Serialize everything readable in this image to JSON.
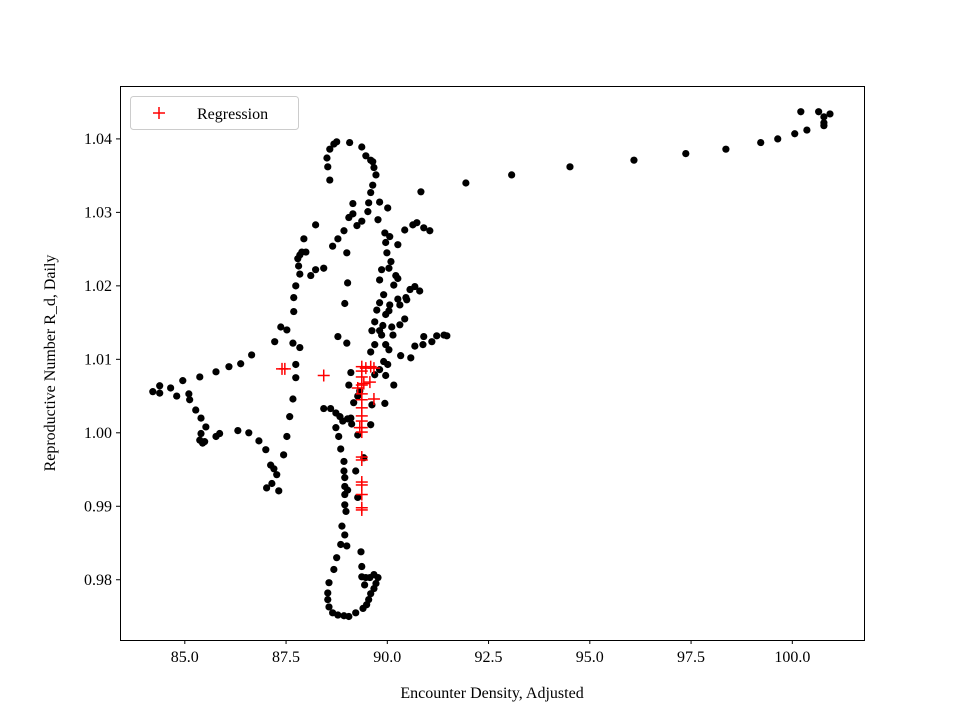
{
  "chart_data": {
    "type": "scatter",
    "title": "",
    "xlabel": "Encounter Density, Adjusted",
    "ylabel": "Reproductive Number R_d, Daily",
    "xlim": [
      83.4,
      101.77
    ],
    "ylim": [
      0.9718,
      1.0472
    ],
    "xticks": [
      85.0,
      87.5,
      90.0,
      92.5,
      95.0,
      97.5,
      100.0
    ],
    "xtick_labels": [
      "85.0",
      "87.5",
      "90.0",
      "92.5",
      "95.0",
      "97.5",
      "100.0"
    ],
    "yticks": [
      0.98,
      0.99,
      1.0,
      1.01,
      1.02,
      1.03,
      1.04
    ],
    "ytick_labels": [
      "0.98",
      "0.99",
      "1.00",
      "1.01",
      "1.02",
      "1.03",
      "1.04"
    ],
    "grid": false,
    "legend": {
      "placement": "top-left",
      "entries": [
        "Regression"
      ]
    },
    "series": [
      {
        "marker": "circle",
        "color": "#000000",
        "points": [
          [
            84.21,
            1.0056
          ],
          [
            84.38,
            1.0064
          ],
          [
            84.38,
            1.0054
          ],
          [
            84.65,
            1.0061
          ],
          [
            84.8,
            1.005
          ],
          [
            84.95,
            1.0071
          ],
          [
            85.1,
            1.0053
          ],
          [
            85.12,
            1.0045
          ],
          [
            85.27,
            1.0031
          ],
          [
            85.4,
            1.002
          ],
          [
            85.52,
            1.0008
          ],
          [
            85.4,
            0.9999
          ],
          [
            85.37,
            0.999
          ],
          [
            85.44,
            0.9986
          ],
          [
            85.49,
            0.9988
          ],
          [
            85.77,
            0.9995
          ],
          [
            85.86,
            0.9999
          ],
          [
            85.37,
            1.0076
          ],
          [
            85.77,
            1.0083
          ],
          [
            86.09,
            1.009
          ],
          [
            86.38,
            1.0094
          ],
          [
            86.65,
            1.0106
          ],
          [
            86.31,
            1.0003
          ],
          [
            86.58,
            1.0
          ],
          [
            86.83,
            0.9989
          ],
          [
            87.0,
            0.9977
          ],
          [
            87.12,
            0.9956
          ],
          [
            87.2,
            0.9951
          ],
          [
            87.27,
            0.9943
          ],
          [
            87.32,
            0.9921
          ],
          [
            87.15,
            0.9931
          ],
          [
            87.02,
            0.9925
          ],
          [
            87.44,
            0.997
          ],
          [
            87.52,
            0.9995
          ],
          [
            87.59,
            1.0022
          ],
          [
            87.67,
            1.0046
          ],
          [
            87.74,
            1.0075
          ],
          [
            87.74,
            1.0093
          ],
          [
            87.84,
            1.0116
          ],
          [
            87.67,
            1.0122
          ],
          [
            87.52,
            1.014
          ],
          [
            87.37,
            1.0144
          ],
          [
            87.22,
            1.0124
          ],
          [
            87.69,
            1.0165
          ],
          [
            87.69,
            1.0184
          ],
          [
            87.74,
            1.02
          ],
          [
            87.84,
            1.0216
          ],
          [
            87.81,
            1.0227
          ],
          [
            87.84,
            1.0242
          ],
          [
            87.94,
            1.0264
          ],
          [
            87.79,
            1.0237
          ],
          [
            87.89,
            1.0246
          ],
          [
            87.99,
            1.0246
          ],
          [
            88.11,
            1.0214
          ],
          [
            88.23,
            1.0222
          ],
          [
            88.43,
            1.0224
          ],
          [
            88.23,
            1.0283
          ],
          [
            88.65,
            1.0254
          ],
          [
            88.78,
            1.0264
          ],
          [
            88.93,
            1.0275
          ],
          [
            89.05,
            1.0293
          ],
          [
            89.15,
            1.0312
          ],
          [
            89.15,
            1.0298
          ],
          [
            89.0,
            1.0245
          ],
          [
            89.02,
            1.0204
          ],
          [
            88.95,
            1.0176
          ],
          [
            88.78,
            1.0131
          ],
          [
            89.0,
            1.0122
          ],
          [
            89.1,
            1.0082
          ],
          [
            89.32,
            1.0057
          ],
          [
            88.58,
            1.0344
          ],
          [
            88.53,
            1.0362
          ],
          [
            88.51,
            1.0374
          ],
          [
            88.58,
            1.0386
          ],
          [
            88.68,
            1.0393
          ],
          [
            88.75,
            1.0396
          ],
          [
            89.07,
            1.0395
          ],
          [
            89.37,
            1.0389
          ],
          [
            89.47,
            1.0377
          ],
          [
            89.59,
            1.0371
          ],
          [
            89.64,
            1.0369
          ],
          [
            89.67,
            1.0361
          ],
          [
            89.72,
            1.0351
          ],
          [
            89.64,
            1.0337
          ],
          [
            89.59,
            1.0327
          ],
          [
            89.54,
            1.0313
          ],
          [
            89.52,
            1.0301
          ],
          [
            89.37,
            1.0288
          ],
          [
            89.25,
            1.0282
          ],
          [
            89.77,
            1.029
          ],
          [
            89.94,
            1.0272
          ],
          [
            90.06,
            1.0267
          ],
          [
            89.96,
            1.0259
          ],
          [
            89.99,
            1.0245
          ],
          [
            90.04,
            1.0224
          ],
          [
            90.21,
            1.0214
          ],
          [
            90.16,
            1.0201
          ],
          [
            90.26,
            1.021
          ],
          [
            90.26,
            1.0182
          ],
          [
            90.31,
            1.0174
          ],
          [
            90.46,
            1.0184
          ],
          [
            90.56,
            1.0195
          ],
          [
            90.48,
            1.0181
          ],
          [
            90.68,
            1.0199
          ],
          [
            90.8,
            1.0193
          ],
          [
            90.43,
            1.0155
          ],
          [
            90.31,
            1.0147
          ],
          [
            90.11,
            1.0144
          ],
          [
            90.06,
            1.0174
          ],
          [
            90.04,
            1.0166
          ],
          [
            89.96,
            1.0161
          ],
          [
            89.89,
            1.0146
          ],
          [
            89.81,
            1.0139
          ],
          [
            89.86,
            1.0133
          ],
          [
            89.96,
            1.012
          ],
          [
            90.04,
            1.0113
          ],
          [
            90.14,
            1.0133
          ],
          [
            90.33,
            1.0105
          ],
          [
            90.58,
            1.0102
          ],
          [
            90.68,
            1.0118
          ],
          [
            90.88,
            1.012
          ],
          [
            90.9,
            1.0131
          ],
          [
            91.1,
            1.0124
          ],
          [
            91.22,
            1.0132
          ],
          [
            91.4,
            1.0133
          ],
          [
            91.47,
            1.0132
          ],
          [
            91.05,
            1.0275
          ],
          [
            90.9,
            1.0279
          ],
          [
            90.63,
            1.0283
          ],
          [
            90.73,
            1.0286
          ],
          [
            90.43,
            1.0276
          ],
          [
            90.26,
            1.0256
          ],
          [
            90.09,
            1.0233
          ],
          [
            89.86,
            1.0222
          ],
          [
            89.81,
            1.0208
          ],
          [
            89.91,
            1.0188
          ],
          [
            89.81,
            1.0177
          ],
          [
            89.74,
            1.0167
          ],
          [
            89.69,
            1.0151
          ],
          [
            89.62,
            1.0139
          ],
          [
            89.69,
            1.012
          ],
          [
            89.59,
            1.011
          ],
          [
            89.91,
            1.0097
          ],
          [
            89.81,
            1.0086
          ],
          [
            89.69,
            1.0079
          ],
          [
            90.16,
            1.0065
          ],
          [
            89.96,
            1.0078
          ],
          [
            89.94,
            1.004
          ],
          [
            90.83,
            1.0328
          ],
          [
            90.01,
            1.0306
          ],
          [
            89.81,
            1.0314
          ],
          [
            88.43,
            1.0033
          ],
          [
            88.6,
            1.0033
          ],
          [
            88.73,
            1.0027
          ],
          [
            88.83,
            1.0022
          ],
          [
            88.9,
            1.0016
          ],
          [
            89.02,
            1.0019
          ],
          [
            89.1,
            1.002
          ],
          [
            88.73,
            1.0007
          ],
          [
            88.8,
            0.9995
          ],
          [
            88.85,
            0.9978
          ],
          [
            88.93,
            0.9961
          ],
          [
            88.93,
            0.9948
          ],
          [
            88.95,
            0.9939
          ],
          [
            88.95,
            0.9927
          ],
          [
            88.95,
            0.9916
          ],
          [
            89.02,
            0.9922
          ],
          [
            88.95,
            0.9902
          ],
          [
            88.98,
            0.9893
          ],
          [
            88.88,
            0.9873
          ],
          [
            88.95,
            0.9861
          ],
          [
            89.0,
            0.9846
          ],
          [
            88.85,
            0.9848
          ],
          [
            88.75,
            0.983
          ],
          [
            88.68,
            0.9814
          ],
          [
            88.56,
            0.9796
          ],
          [
            88.53,
            0.9782
          ],
          [
            88.53,
            0.9773
          ],
          [
            88.56,
            0.9763
          ],
          [
            88.65,
            0.9755
          ],
          [
            88.78,
            0.9752
          ],
          [
            88.93,
            0.9751
          ],
          [
            89.05,
            0.975
          ],
          [
            89.22,
            0.9755
          ],
          [
            89.4,
            0.9761
          ],
          [
            89.49,
            0.9766
          ],
          [
            89.54,
            0.9773
          ],
          [
            89.59,
            0.9781
          ],
          [
            89.67,
            0.9788
          ],
          [
            89.72,
            0.9795
          ],
          [
            89.77,
            0.9803
          ],
          [
            89.67,
            0.9807
          ],
          [
            89.57,
            0.9803
          ],
          [
            89.47,
            0.9803
          ],
          [
            89.44,
            0.9793
          ],
          [
            89.37,
            0.9804
          ],
          [
            89.37,
            0.9818
          ],
          [
            89.35,
            0.9838
          ],
          [
            89.27,
            0.9912
          ],
          [
            89.22,
            0.9948
          ],
          [
            89.12,
            1.0012
          ],
          [
            89.27,
            0.9997
          ],
          [
            89.42,
            0.9966
          ],
          [
            89.59,
            1.0011
          ],
          [
            89.62,
            1.0038
          ],
          [
            90.01,
            1.0093
          ],
          [
            89.05,
            1.0065
          ],
          [
            89.17,
            1.0041
          ],
          [
            89.27,
            1.005
          ],
          [
            91.94,
            1.034
          ],
          [
            93.07,
            1.0351
          ],
          [
            94.51,
            1.0362
          ],
          [
            96.09,
            1.0371
          ],
          [
            97.37,
            1.038
          ],
          [
            98.36,
            1.0386
          ],
          [
            99.22,
            1.0395
          ],
          [
            99.64,
            1.04
          ],
          [
            100.06,
            1.0407
          ],
          [
            100.21,
            1.0437
          ],
          [
            100.36,
            1.0412
          ],
          [
            100.65,
            1.0437
          ],
          [
            100.78,
            1.043
          ],
          [
            100.78,
            1.0422
          ],
          [
            100.93,
            1.0434
          ],
          [
            100.78,
            1.0418
          ]
        ]
      },
      {
        "name": "Regression",
        "marker": "plus",
        "color": "#ff0000",
        "points": [
          [
            87.4,
            1.0087
          ],
          [
            87.47,
            1.0087
          ],
          [
            88.43,
            1.0078
          ],
          [
            89.37,
            1.009
          ],
          [
            89.37,
            1.0084
          ],
          [
            89.47,
            1.0088
          ],
          [
            89.59,
            1.009
          ],
          [
            89.67,
            1.0088
          ],
          [
            89.37,
            1.0076
          ],
          [
            89.27,
            1.0061
          ],
          [
            89.42,
            1.0067
          ],
          [
            89.57,
            1.0069
          ],
          [
            89.37,
            1.0053
          ],
          [
            89.67,
            1.0046
          ],
          [
            89.37,
            1.0034
          ],
          [
            89.37,
            1.0023
          ],
          [
            89.37,
            1.0016
          ],
          [
            89.37,
            1.0007
          ],
          [
            89.37,
            1.0001
          ],
          [
            89.32,
            1.0007
          ],
          [
            89.37,
            0.9963
          ],
          [
            89.37,
            0.9967
          ],
          [
            89.37,
            0.9933
          ],
          [
            89.37,
            0.9929
          ],
          [
            89.37,
            0.9916
          ],
          [
            89.37,
            0.9898
          ],
          [
            89.37,
            0.9895
          ],
          [
            89.37,
            1.0065
          ],
          [
            89.37,
            1.0045
          ]
        ]
      }
    ]
  }
}
